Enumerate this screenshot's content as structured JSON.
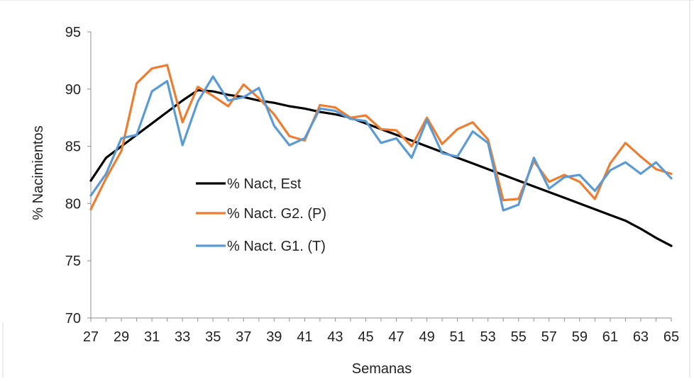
{
  "chart_data": {
    "type": "line",
    "title": "",
    "xlabel": "Semanas",
    "ylabel": "% Nacimientos",
    "ylim": [
      70,
      95
    ],
    "yticks": [
      70,
      75,
      80,
      85,
      90,
      95
    ],
    "xlim": [
      27,
      65
    ],
    "xticks": [
      27,
      29,
      31,
      33,
      35,
      37,
      39,
      41,
      43,
      45,
      47,
      49,
      51,
      53,
      55,
      57,
      59,
      61,
      63,
      65
    ],
    "grid": "none",
    "legend_position": "left-center",
    "x": [
      27,
      28,
      29,
      30,
      31,
      32,
      33,
      34,
      35,
      36,
      37,
      38,
      39,
      40,
      41,
      42,
      43,
      44,
      45,
      46,
      47,
      48,
      49,
      50,
      51,
      52,
      53,
      54,
      55,
      56,
      57,
      58,
      59,
      60,
      61,
      62,
      63,
      64,
      65
    ],
    "series": [
      {
        "name": "% Nact, Est",
        "color": "#000000",
        "values": [
          82.0,
          84.0,
          85.0,
          86.0,
          87.0,
          88.0,
          89.0,
          89.9,
          89.8,
          89.5,
          89.3,
          89.0,
          88.8,
          88.5,
          88.3,
          88.0,
          87.8,
          87.5,
          87.0,
          86.5,
          86.0,
          85.5,
          85.0,
          84.5,
          84.0,
          83.5,
          83.0,
          82.5,
          82.0,
          81.5,
          81.0,
          80.5,
          80.0,
          79.5,
          79.0,
          78.5,
          77.8,
          77.0,
          76.3
        ]
      },
      {
        "name": "% Nact. G2. (P)",
        "color": "#ED7D31",
        "values": [
          79.5,
          82.2,
          84.6,
          90.5,
          91.8,
          92.1,
          87.1,
          90.2,
          89.4,
          88.5,
          90.4,
          89.2,
          87.8,
          85.9,
          85.5,
          88.6,
          88.4,
          87.5,
          87.7,
          86.5,
          86.4,
          85.0,
          87.5,
          85.2,
          86.5,
          87.1,
          85.6,
          80.3,
          80.4,
          83.7,
          81.9,
          82.5,
          81.9,
          80.4,
          83.5,
          85.3,
          84.1,
          83.0,
          82.6
        ]
      },
      {
        "name": "% Nact. G1. (T)",
        "color": "#5B9BD5",
        "values": [
          80.7,
          82.6,
          85.7,
          86.0,
          89.8,
          90.7,
          85.1,
          88.9,
          91.1,
          89.0,
          89.3,
          90.1,
          86.8,
          85.1,
          85.7,
          88.3,
          88.1,
          87.4,
          87.2,
          85.3,
          85.7,
          84.0,
          87.3,
          84.4,
          84.1,
          86.3,
          85.3,
          79.4,
          79.9,
          84.0,
          81.3,
          82.3,
          82.5,
          81.1,
          82.9,
          83.6,
          82.6,
          83.6,
          82.2
        ]
      }
    ]
  }
}
